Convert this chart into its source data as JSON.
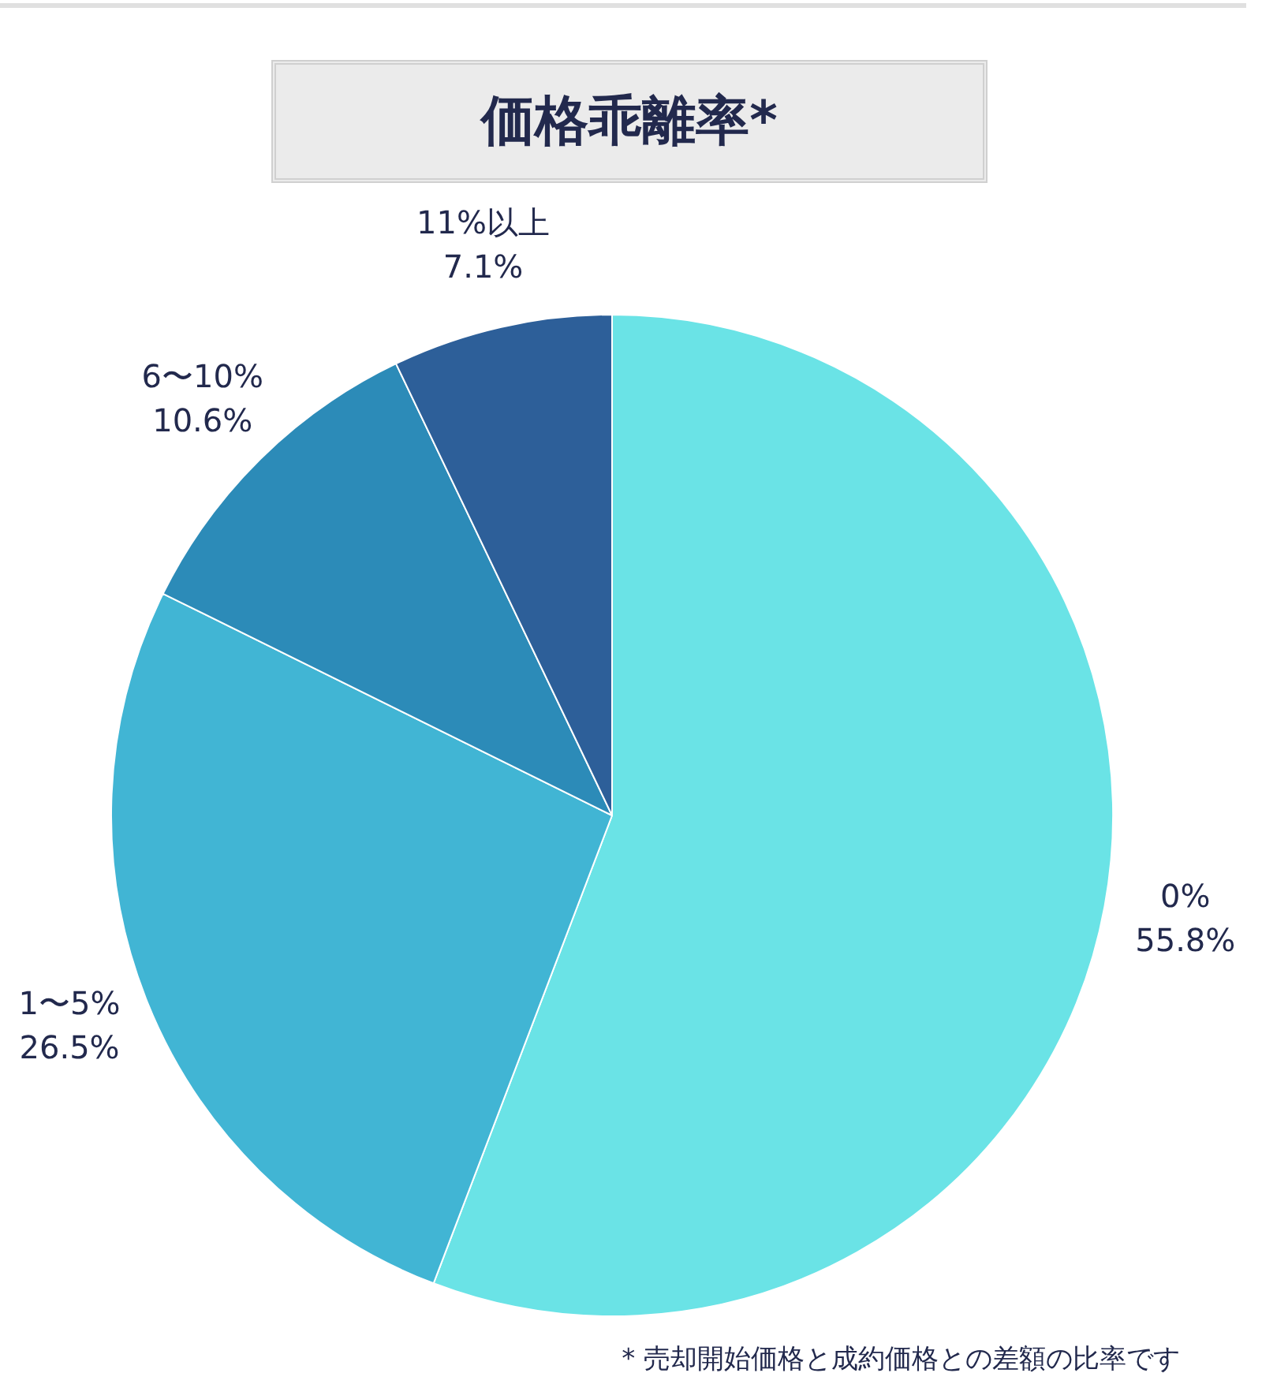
{
  "chart_data": {
    "type": "pie",
    "title": "価格乖離率*",
    "categories": [
      "0%",
      "1〜5%",
      "6〜10%",
      "11%以上"
    ],
    "values": [
      55.8,
      26.5,
      10.6,
      7.1
    ],
    "value_labels": [
      "55.8%",
      "26.5%",
      "10.6%",
      "7.1%"
    ],
    "colors": [
      "#6ae3e6",
      "#41b5d4",
      "#2c8bb8",
      "#2d5f99"
    ],
    "annotations": [
      "* 売却開始価格と成約価格との差額の比率です"
    ]
  }
}
